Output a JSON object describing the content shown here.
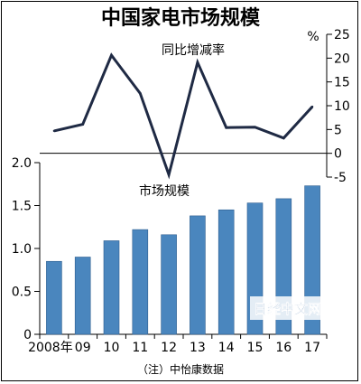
{
  "chart_data": {
    "title": "中国家电市场规模",
    "source": "（注）中怡康数据",
    "watermark": "日经中文网",
    "bar_color": "#4a86be",
    "line_color": "#1f2a44",
    "bars": {
      "type": "bar",
      "label": "市场规模",
      "categories": [
        "2008年",
        "09",
        "10",
        "11",
        "12",
        "13",
        "14",
        "15",
        "16",
        "17"
      ],
      "values": [
        0.85,
        0.9,
        1.09,
        1.22,
        1.16,
        1.38,
        1.45,
        1.53,
        1.58,
        1.73
      ],
      "ylim": [
        0,
        2.0
      ],
      "yticks": [
        "0",
        "0.5",
        "1.0",
        "1.5",
        "2.0"
      ]
    },
    "line": {
      "type": "line",
      "label": "同比增减率",
      "unit": "%",
      "values": [
        4.7,
        6.1,
        20.6,
        12.6,
        -4.5,
        19.1,
        5.4,
        5.5,
        3.2,
        9.8
      ],
      "ylim": [
        -5,
        25
      ],
      "yticks": [
        "-5",
        "0",
        "5",
        "10",
        "15",
        "20",
        "25"
      ]
    }
  }
}
